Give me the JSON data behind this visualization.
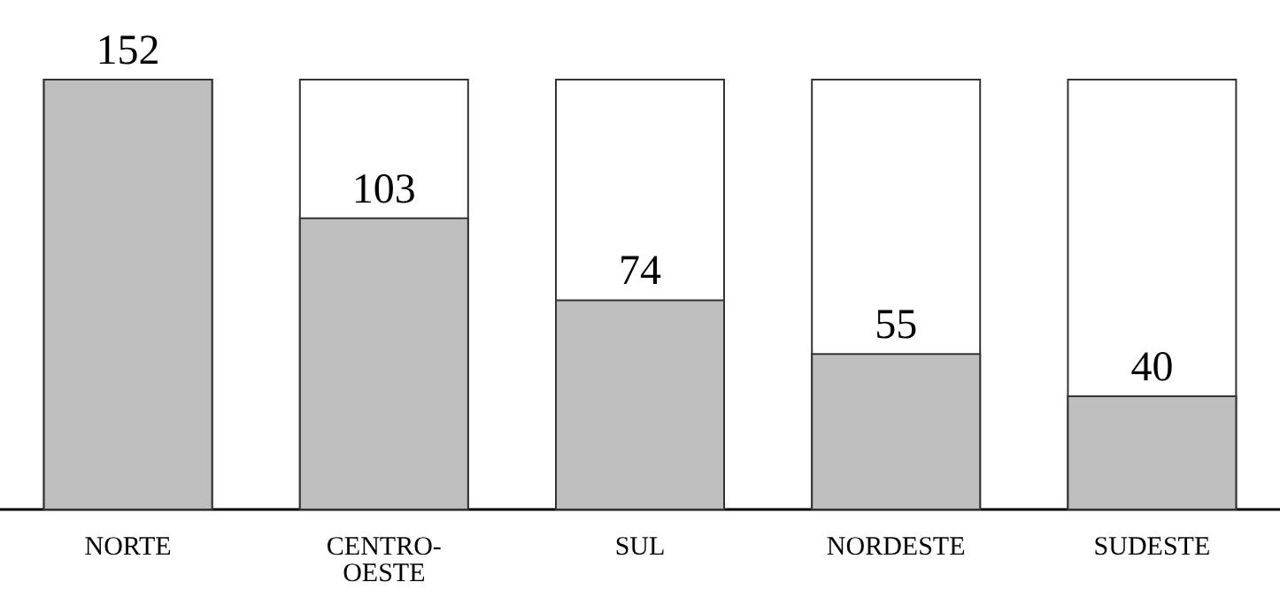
{
  "chart_data": {
    "type": "bar",
    "categories": [
      "NORTE",
      "CENTRO-OESTE",
      "SUL",
      "NORDESTE",
      "SUDESTE"
    ],
    "values": [
      152,
      103,
      74,
      55,
      40
    ],
    "color": "#bebebe",
    "data_labels": true,
    "grid": false
  }
}
